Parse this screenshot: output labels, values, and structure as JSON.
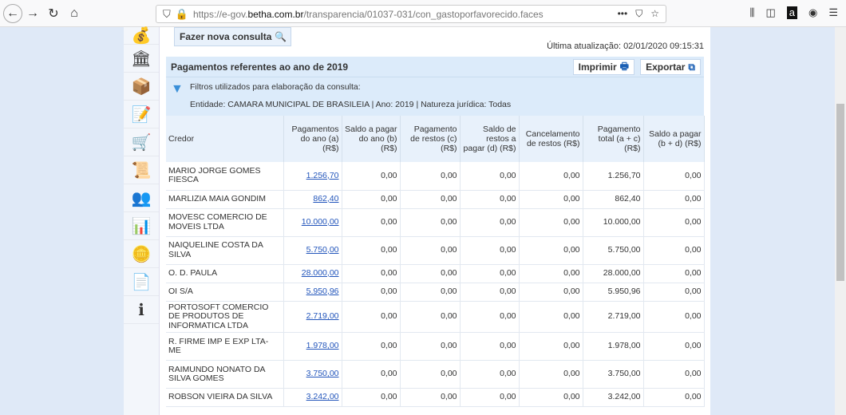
{
  "browser": {
    "url_prefix": "https://e-gov.",
    "url_domain": "betha.com.br",
    "url_path": "/transparencia/01037-031/con_gastoporfavorecido.faces"
  },
  "page": {
    "new_query": "Fazer nova consulta",
    "last_update": "Última atualização: 02/01/2020 09:15:31",
    "panel_title": "Pagamentos referentes ao ano de 2019",
    "print": "Imprimir",
    "export": "Exportar",
    "filters_label": "Filtros utilizados para elaboração da consulta:",
    "filters_value": "Entidade: CAMARA MUNICIPAL DE BRASILEIA | Ano: 2019 | Natureza jurídica: Todas"
  },
  "table": {
    "headers": [
      "Credor",
      "Pagamentos do ano (a) (R$)",
      "Saldo a pagar do ano (b) (R$)",
      "Pagamento de restos (c) (R$)",
      "Saldo de restos a pagar (d) (R$)",
      "Cancelamento de restos (R$)",
      "Pagamento total (a + c) (R$)",
      "Saldo a pagar (b + d) (R$)"
    ],
    "rows": [
      [
        "MARIO JORGE GOMES FIESCA",
        "1.256,70",
        "0,00",
        "0,00",
        "0,00",
        "0,00",
        "1.256,70",
        "0,00"
      ],
      [
        "MARLIZIA MAIA GONDIM",
        "862,40",
        "0,00",
        "0,00",
        "0,00",
        "0,00",
        "862,40",
        "0,00"
      ],
      [
        "MOVESC COMERCIO DE MOVEIS LTDA",
        "10.000,00",
        "0,00",
        "0,00",
        "0,00",
        "0,00",
        "10.000,00",
        "0,00"
      ],
      [
        "NAIQUELINE COSTA DA SILVA",
        "5.750,00",
        "0,00",
        "0,00",
        "0,00",
        "0,00",
        "5.750,00",
        "0,00"
      ],
      [
        "O. D. PAULA",
        "28.000,00",
        "0,00",
        "0,00",
        "0,00",
        "0,00",
        "28.000,00",
        "0,00"
      ],
      [
        "OI S/A",
        "5.950,96",
        "0,00",
        "0,00",
        "0,00",
        "0,00",
        "5.950,96",
        "0,00"
      ],
      [
        "PORTOSOFT COMERCIO DE PRODUTOS DE INFORMATICA LTDA",
        "2.719,00",
        "0,00",
        "0,00",
        "0,00",
        "0,00",
        "2.719,00",
        "0,00"
      ],
      [
        "R. FIRME IMP E EXP LTA-ME",
        "1.978,00",
        "0,00",
        "0,00",
        "0,00",
        "0,00",
        "1.978,00",
        "0,00"
      ],
      [
        "RAIMUNDO NONATO DA SILVA GOMES",
        "3.750,00",
        "0,00",
        "0,00",
        "0,00",
        "0,00",
        "3.750,00",
        "0,00"
      ],
      [
        "ROBSON VIEIRA DA SILVA",
        "3.242,00",
        "0,00",
        "0,00",
        "0,00",
        "0,00",
        "3.242,00",
        "0,00"
      ]
    ]
  }
}
